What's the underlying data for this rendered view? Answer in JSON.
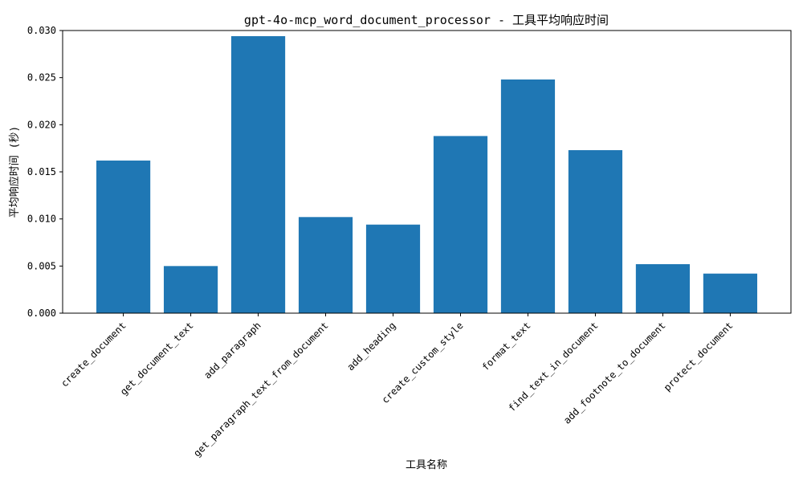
{
  "chart_data": {
    "type": "bar",
    "title": "gpt-4o-mcp_word_document_processor - 工具平均响应时间",
    "xlabel": "工具名称",
    "ylabel": "平均响应时间 (秒)",
    "categories": [
      "create_document",
      "get_document_text",
      "add_paragraph",
      "get_paragraph_text_from_document",
      "add_heading",
      "create_custom_style",
      "format_text",
      "find_text_in_document",
      "add_footnote_to_document",
      "protect_document"
    ],
    "values": [
      0.0162,
      0.005,
      0.0294,
      0.0102,
      0.0094,
      0.0188,
      0.0248,
      0.0173,
      0.0052,
      0.0042
    ],
    "ylim": [
      0,
      0.03
    ],
    "yticks": [
      0.0,
      0.005,
      0.01,
      0.015,
      0.02,
      0.025,
      0.03
    ],
    "ytick_labels": [
      "0.000",
      "0.005",
      "0.010",
      "0.015",
      "0.020",
      "0.025",
      "0.030"
    ],
    "grid": false,
    "bar_color": "#1f77b4"
  }
}
